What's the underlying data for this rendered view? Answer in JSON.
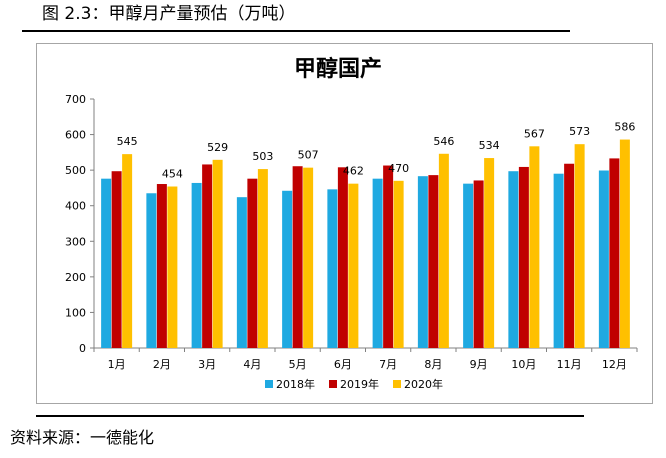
{
  "figure_title": "图 2.3：甲醇月产量预估（万吨）",
  "source": "资料来源：一德能化",
  "chart_data": {
    "type": "bar",
    "title": "甲醇国产",
    "categories": [
      "1月",
      "2月",
      "3月",
      "4月",
      "5月",
      "6月",
      "7月",
      "8月",
      "9月",
      "10月",
      "11月",
      "12月"
    ],
    "series": [
      {
        "name": "2018年",
        "color": "#1FA9E1",
        "values": [
          476,
          435,
          464,
          424,
          442,
          446,
          476,
          483,
          462,
          497,
          490,
          499
        ],
        "labels": false
      },
      {
        "name": "2019年",
        "color": "#C00000",
        "values": [
          497,
          461,
          516,
          476,
          511,
          508,
          513,
          486,
          471,
          509,
          518,
          533
        ],
        "labels": false
      },
      {
        "name": "2020年",
        "color": "#FFC000",
        "values": [
          545,
          454,
          529,
          503,
          507,
          462,
          470,
          546,
          534,
          567,
          573,
          586
        ],
        "labels": true
      }
    ],
    "ylim": [
      0,
      700
    ],
    "yticks": [
      0,
      100,
      200,
      300,
      400,
      500,
      600,
      700
    ],
    "grid": false,
    "legend": "bottom"
  }
}
